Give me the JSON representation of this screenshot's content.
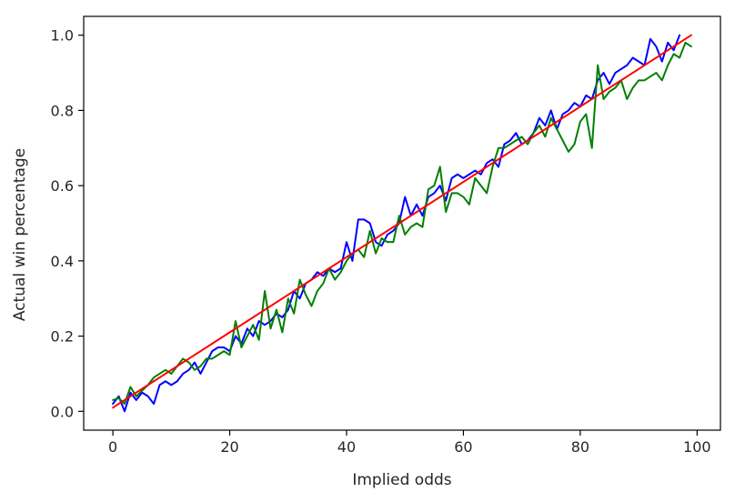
{
  "chart_data": {
    "type": "line",
    "title": "",
    "xlabel": "Implied odds",
    "ylabel": "Actual win percentage",
    "xlim": [
      -5,
      104
    ],
    "ylim": [
      -0.05,
      1.05
    ],
    "xticks": [
      0,
      20,
      40,
      60,
      80,
      100
    ],
    "yticks": [
      0.0,
      0.2,
      0.4,
      0.6,
      0.8,
      1.0
    ],
    "xtick_labels": [
      "0",
      "20",
      "40",
      "60",
      "80",
      "100"
    ],
    "ytick_labels": [
      "0.0",
      "0.2",
      "0.4",
      "0.6",
      "0.8",
      "1.0"
    ],
    "grid": false,
    "legend": "none",
    "series": [
      {
        "color": "#0000ff",
        "x": [
          0,
          1,
          2,
          3,
          4,
          5,
          6,
          7,
          8,
          9,
          10,
          11,
          12,
          13,
          14,
          15,
          16,
          17,
          18,
          19,
          20,
          21,
          22,
          23,
          24,
          25,
          26,
          27,
          28,
          29,
          30,
          31,
          32,
          33,
          34,
          35,
          36,
          37,
          38,
          39,
          40,
          41,
          42,
          43,
          44,
          45,
          46,
          47,
          48,
          49,
          50,
          51,
          52,
          53,
          54,
          55,
          56,
          57,
          58,
          59,
          60,
          61,
          62,
          63,
          64,
          65,
          66,
          67,
          68,
          69,
          70,
          71,
          72,
          73,
          74,
          75,
          76,
          77,
          78,
          79,
          80,
          81,
          82,
          83,
          84,
          85,
          86,
          87,
          88,
          89,
          90,
          91,
          92,
          93,
          94,
          95,
          96,
          97
        ],
        "y": [
          0.02,
          0.04,
          0.0,
          0.05,
          0.03,
          0.05,
          0.04,
          0.02,
          0.07,
          0.08,
          0.07,
          0.08,
          0.1,
          0.11,
          0.13,
          0.1,
          0.13,
          0.16,
          0.17,
          0.17,
          0.16,
          0.2,
          0.18,
          0.22,
          0.2,
          0.24,
          0.23,
          0.24,
          0.26,
          0.25,
          0.27,
          0.32,
          0.3,
          0.34,
          0.35,
          0.37,
          0.36,
          0.38,
          0.37,
          0.38,
          0.45,
          0.4,
          0.51,
          0.51,
          0.5,
          0.45,
          0.44,
          0.47,
          0.48,
          0.5,
          0.57,
          0.52,
          0.55,
          0.52,
          0.57,
          0.58,
          0.6,
          0.56,
          0.62,
          0.63,
          0.62,
          0.63,
          0.64,
          0.63,
          0.66,
          0.67,
          0.65,
          0.71,
          0.72,
          0.74,
          0.71,
          0.72,
          0.74,
          0.78,
          0.76,
          0.8,
          0.75,
          0.79,
          0.8,
          0.82,
          0.81,
          0.84,
          0.83,
          0.88,
          0.9,
          0.87,
          0.9,
          0.91,
          0.92,
          0.94,
          0.93,
          0.92,
          0.99,
          0.97,
          0.93,
          0.98,
          0.96,
          1.0
        ]
      },
      {
        "color": "#008000",
        "x": [
          0,
          1,
          2,
          3,
          4,
          5,
          6,
          7,
          8,
          9,
          10,
          11,
          12,
          13,
          14,
          15,
          16,
          17,
          18,
          19,
          20,
          21,
          22,
          23,
          24,
          25,
          26,
          27,
          28,
          29,
          30,
          31,
          32,
          33,
          34,
          35,
          36,
          37,
          38,
          39,
          40,
          41,
          42,
          43,
          44,
          45,
          46,
          47,
          48,
          49,
          50,
          51,
          52,
          53,
          54,
          55,
          56,
          57,
          58,
          59,
          60,
          61,
          62,
          63,
          64,
          65,
          66,
          67,
          68,
          69,
          70,
          71,
          72,
          73,
          74,
          75,
          76,
          77,
          78,
          79,
          80,
          81,
          82,
          83,
          84,
          85,
          86,
          87,
          88,
          89,
          90,
          91,
          92,
          93,
          94,
          95,
          96,
          97,
          98,
          99
        ],
        "y": [
          0.03,
          0.035,
          0.02,
          0.065,
          0.04,
          0.055,
          0.07,
          0.09,
          0.1,
          0.11,
          0.1,
          0.12,
          0.14,
          0.13,
          0.11,
          0.12,
          0.14,
          0.14,
          0.15,
          0.16,
          0.15,
          0.24,
          0.17,
          0.2,
          0.23,
          0.19,
          0.32,
          0.22,
          0.27,
          0.21,
          0.3,
          0.26,
          0.35,
          0.31,
          0.28,
          0.32,
          0.34,
          0.38,
          0.35,
          0.37,
          0.4,
          0.42,
          0.43,
          0.41,
          0.48,
          0.42,
          0.46,
          0.45,
          0.45,
          0.52,
          0.47,
          0.49,
          0.5,
          0.49,
          0.59,
          0.6,
          0.65,
          0.53,
          0.58,
          0.58,
          0.57,
          0.55,
          0.62,
          0.6,
          0.58,
          0.65,
          0.7,
          0.7,
          0.71,
          0.72,
          0.73,
          0.71,
          0.74,
          0.76,
          0.73,
          0.78,
          0.75,
          0.72,
          0.69,
          0.71,
          0.77,
          0.79,
          0.7,
          0.92,
          0.83,
          0.85,
          0.86,
          0.88,
          0.83,
          0.86,
          0.88,
          0.88,
          0.89,
          0.9,
          0.88,
          0.92,
          0.95,
          0.94,
          0.98,
          0.97
        ]
      },
      {
        "color": "#ff0000",
        "x": [
          0,
          99
        ],
        "y": [
          0.01,
          1.0
        ]
      }
    ]
  }
}
